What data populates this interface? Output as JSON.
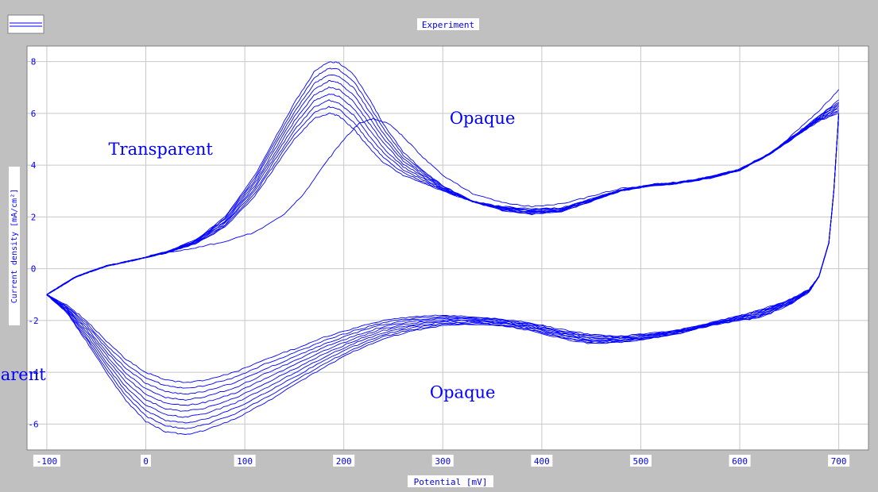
{
  "window": {
    "title": "Experiment"
  },
  "colors": {
    "background": "#c0c0c0",
    "plot_background": "#ffffff",
    "grid": "#c8c8c8",
    "series": "#0000ff",
    "text": "#0000ff"
  },
  "chart_data": {
    "type": "line",
    "title": "Experiment",
    "xlabel": "Potential [mV]",
    "ylabel": "Current density [mA/cm²]",
    "xlim": [
      -120,
      730
    ],
    "ylim": [
      -7,
      8.6
    ],
    "xticks": [
      -100,
      0,
      100,
      200,
      300,
      400,
      500,
      600,
      700
    ],
    "yticks": [
      -6,
      -4,
      -2,
      0,
      2,
      4,
      6,
      8
    ],
    "grid": true,
    "cycles": 10,
    "annotations": [
      {
        "text": "Transparent",
        "x": 15,
        "y": 4.4,
        "anchor": "middle"
      },
      {
        "text": "Opaque",
        "x": 340,
        "y": 5.6,
        "anchor": "middle"
      },
      {
        "text": "Transparent",
        "x": -101,
        "y": -4.3,
        "anchor": "end"
      },
      {
        "text": "Opaque",
        "x": 320,
        "y": -5.0,
        "anchor": "middle"
      }
    ],
    "anodic_first_cycle": {
      "x": [
        -100,
        -70,
        -40,
        -10,
        20,
        50,
        80,
        110,
        140,
        160,
        180,
        200,
        215,
        230,
        245,
        260,
        280,
        300,
        330,
        360,
        390,
        420,
        450,
        480,
        510,
        540,
        570,
        600,
        630,
        660,
        680,
        700
      ],
      "y": [
        -1.0,
        -0.3,
        0.1,
        0.35,
        0.6,
        0.8,
        1.05,
        1.4,
        2.1,
        2.9,
        4.0,
        5.0,
        5.6,
        5.8,
        5.6,
        5.1,
        4.3,
        3.6,
        2.9,
        2.55,
        2.4,
        2.5,
        2.8,
        3.1,
        3.2,
        3.3,
        3.5,
        3.8,
        4.4,
        5.4,
        6.1,
        6.9
      ]
    },
    "anodic_last_cycle": {
      "x": [
        -100,
        -70,
        -40,
        -10,
        20,
        50,
        80,
        110,
        130,
        150,
        170,
        185,
        195,
        210,
        225,
        240,
        260,
        280,
        300,
        330,
        360,
        390,
        420,
        450,
        480,
        510,
        540,
        570,
        600,
        630,
        660,
        680,
        700
      ],
      "y": [
        -1.0,
        -0.3,
        0.1,
        0.35,
        0.65,
        1.1,
        2.0,
        3.6,
        5.0,
        6.4,
        7.6,
        8.0,
        7.95,
        7.5,
        6.6,
        5.6,
        4.5,
        3.8,
        3.2,
        2.6,
        2.25,
        2.1,
        2.2,
        2.6,
        3.0,
        3.2,
        3.3,
        3.5,
        3.8,
        4.4,
        5.2,
        5.7,
        6.0
      ]
    },
    "cathodic_first_cycle": {
      "x": [
        700,
        695,
        690,
        680,
        670,
        650,
        620,
        600,
        570,
        540,
        510,
        480,
        450,
        420,
        390,
        360,
        330,
        300,
        270,
        240,
        210,
        180,
        150,
        120,
        90,
        60,
        40,
        20,
        0,
        -20,
        -40,
        -60,
        -80,
        -100
      ],
      "y": [
        6.0,
        3.0,
        1.0,
        -0.3,
        -0.8,
        -1.2,
        -1.6,
        -1.8,
        -2.1,
        -2.35,
        -2.5,
        -2.6,
        -2.55,
        -2.35,
        -2.1,
        -1.95,
        -1.85,
        -1.8,
        -1.85,
        -2.0,
        -2.3,
        -2.65,
        -3.1,
        -3.5,
        -4.0,
        -4.3,
        -4.4,
        -4.3,
        -4.0,
        -3.5,
        -2.8,
        -2.0,
        -1.4,
        -1.0
      ]
    },
    "cathodic_last_cycle": {
      "x": [
        700,
        695,
        690,
        680,
        670,
        650,
        620,
        600,
        570,
        540,
        510,
        480,
        450,
        420,
        390,
        360,
        330,
        300,
        270,
        240,
        210,
        180,
        150,
        120,
        90,
        60,
        40,
        20,
        0,
        -20,
        -40,
        -60,
        -80,
        -100
      ],
      "y": [
        6.0,
        3.0,
        1.0,
        -0.3,
        -0.9,
        -1.4,
        -1.9,
        -2.0,
        -2.2,
        -2.5,
        -2.7,
        -2.85,
        -2.9,
        -2.7,
        -2.4,
        -2.2,
        -2.15,
        -2.2,
        -2.4,
        -2.7,
        -3.2,
        -3.8,
        -4.5,
        -5.2,
        -5.8,
        -6.25,
        -6.4,
        -6.3,
        -5.9,
        -5.1,
        -4.0,
        -2.8,
        -1.7,
        -1.0
      ]
    }
  }
}
